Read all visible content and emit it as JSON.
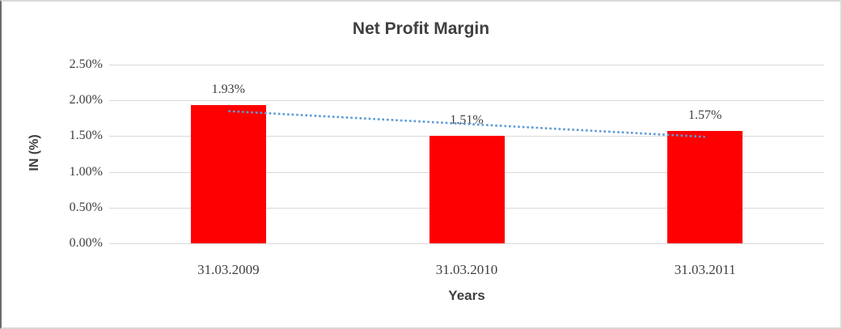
{
  "chart_data": {
    "type": "bar",
    "title": "Net Profit Margin",
    "categories": [
      "31.03.2009",
      "31.03.2010",
      "31.03.2011"
    ],
    "values": [
      1.93,
      1.51,
      1.57
    ],
    "data_labels": [
      "1.93%",
      "1.51%",
      "1.57%"
    ],
    "xlabel": "Years",
    "ylabel": "IN (%)",
    "ylim": [
      0,
      2.5
    ],
    "yticks": [
      0,
      0.5,
      1.0,
      1.5,
      2.0,
      2.5
    ],
    "ytick_labels": [
      "0.00%",
      "0.50%",
      "1.00%",
      "1.50%",
      "2.00%",
      "2.50%"
    ],
    "grid": true,
    "legend": "none",
    "bar_color": "#ff0000",
    "trendline": {
      "type": "linear",
      "style": "dotted",
      "color": "#5b9bd5"
    }
  },
  "colors": {
    "bar": "#ff0000",
    "trendline": "#5b9bd5",
    "gridline": "#d9d9d9",
    "text_dark": "#404040",
    "tick_text": "#3f3f3f",
    "frame_border": "#d9d9d9",
    "frame_left_border": "#6b6b6b",
    "background": "#ffffff"
  }
}
